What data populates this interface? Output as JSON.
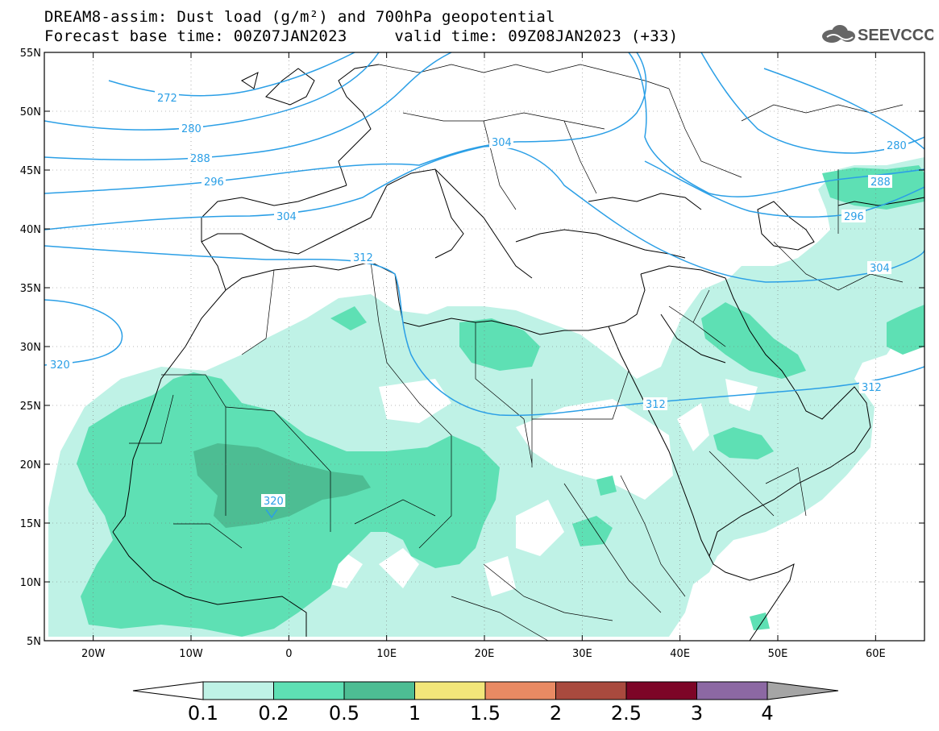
{
  "header": {
    "title_line1": "DREAM8-assim: Dust load (g/m²) and 700hPa geopotential",
    "title_line2": "Forecast base time: 00Z07JAN2023     valid time: 09Z08JAN2023 (+33)",
    "logo_text": "SEEVCCC"
  },
  "axes": {
    "lon_ticks": [
      "20W",
      "10W",
      "0",
      "10E",
      "20E",
      "30E",
      "40E",
      "50E",
      "60E"
    ],
    "lat_ticks": [
      "55N",
      "50N",
      "45N",
      "40N",
      "35N",
      "30N",
      "25N",
      "20N",
      "15N",
      "10N",
      "5N"
    ]
  },
  "contour_labels": {
    "l272": "272",
    "l280a": "280",
    "l288a": "288",
    "l296a": "296",
    "l304a": "304",
    "l312a": "312",
    "l320a": "320",
    "l304b": "304",
    "l312b": "312",
    "l320b": "320",
    "l280b": "280",
    "l288b": "288",
    "l296b": "296",
    "l304c": "304",
    "l312c": "312"
  },
  "colorbar": {
    "labels": [
      "0.1",
      "0.2",
      "0.5",
      "1",
      "1.5",
      "2",
      "2.5",
      "3",
      "4"
    ],
    "colors": [
      "#ffffff",
      "#bff2e6",
      "#5ee0b4",
      "#4dbd93",
      "#f2e67a",
      "#e98a63",
      "#a94a3e",
      "#7d0527",
      "#8c68a3",
      "#a5a5a5"
    ]
  },
  "colors": {
    "contour": "#2b9fe6",
    "dust_low": "#bff2e6",
    "dust_mid": "#5ee0b4",
    "dust_high": "#4dbd93"
  }
}
